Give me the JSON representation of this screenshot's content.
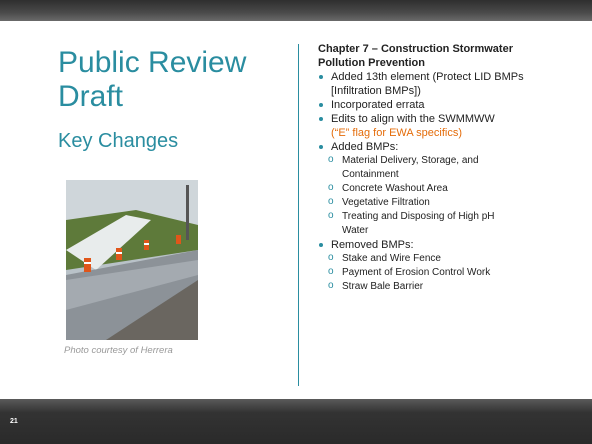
{
  "title": "Public Review Draft",
  "subtitle": "Key Changes",
  "caption": "Photo courtesy of Herrera",
  "heading": "Chapter 7 – Construction Stormwater Pollution Prevention",
  "bullets": [
    {
      "text": "Added 13th element (Protect LID BMPs [Infiltration BMPs])"
    },
    {
      "text": "Incorporated errata"
    },
    {
      "text": "Edits to align with the SWMMWW",
      "note": "(“E” flag for EWA specifics)"
    },
    {
      "text": "Added BMPs:",
      "items": [
        "Material Delivery, Storage, and Containment",
        "Concrete Washout Area",
        "Vegetative Filtration",
        "Treating and Disposing of High pH Water"
      ]
    },
    {
      "text": "Removed BMPs:",
      "items": [
        "Stake and Wire Fence",
        "Payment of Erosion Control Work",
        "Straw Bale Barrier"
      ]
    }
  ],
  "page_number": "21"
}
